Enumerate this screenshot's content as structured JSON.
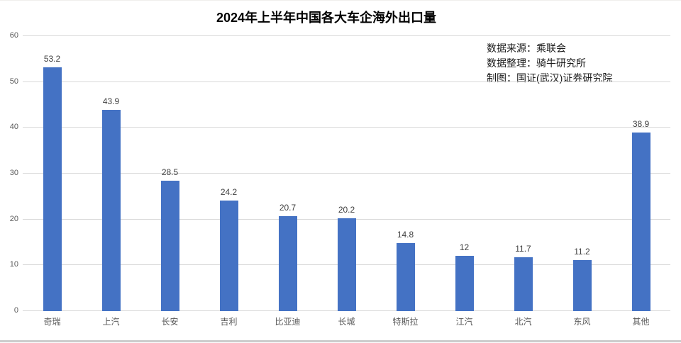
{
  "title": "2024年上半年中国各大车企海外出口量",
  "annotation": {
    "line1": "数据来源：乘联会",
    "line2": "数据整理：骑牛研究所",
    "line3": "制图：国证(武汉)证券研究院"
  },
  "chart_data": {
    "type": "bar",
    "title": "2024年上半年中国各大车企海外出口量",
    "categories": [
      "奇瑞",
      "上汽",
      "长安",
      "吉利",
      "比亚迪",
      "长城",
      "特斯拉",
      "江汽",
      "北汽",
      "东风",
      "其他"
    ],
    "values": [
      53.2,
      43.9,
      28.5,
      24.2,
      20.7,
      20.2,
      14.8,
      12,
      11.7,
      11.2,
      38.9
    ],
    "value_labels": [
      "53.2",
      "43.9",
      "28.5",
      "24.2",
      "20.7",
      "20.2",
      "14.8",
      "12",
      "11.7",
      "11.2",
      "38.9"
    ],
    "xlabel": "",
    "ylabel": "",
    "ylim": [
      0,
      60
    ],
    "yticks": [
      0,
      10,
      20,
      30,
      40,
      50,
      60
    ],
    "grid": true,
    "legend_position": "none",
    "bar_color": "#4472C4",
    "gridline_color": "#d9d9d9",
    "axis_label_color": "#595959",
    "data_label_color": "#404040"
  }
}
